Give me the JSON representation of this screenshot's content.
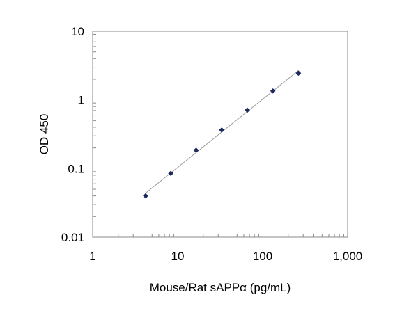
{
  "chart_data": {
    "type": "scatter",
    "title": "",
    "xlabel": "Mouse/Rat sAPPα (pg/mL)",
    "ylabel": "OD 450",
    "x_scale": "log",
    "y_scale": "log",
    "xlim": [
      1,
      1000
    ],
    "ylim": [
      0.01,
      10
    ],
    "x_ticks": [
      {
        "value": 1,
        "label": "1"
      },
      {
        "value": 10,
        "label": "10"
      },
      {
        "value": 100,
        "label": "100"
      },
      {
        "value": 1000,
        "label": "1,000"
      }
    ],
    "y_ticks": [
      {
        "value": 0.01,
        "label": "0.01"
      },
      {
        "value": 0.1,
        "label": "0.1"
      },
      {
        "value": 1,
        "label": "1"
      },
      {
        "value": 10,
        "label": "10"
      }
    ],
    "grid": false,
    "legend": "none",
    "series": [
      {
        "x": [
          4.2,
          8.3,
          16.5,
          33,
          66,
          132,
          264
        ],
        "y": [
          0.04,
          0.085,
          0.185,
          0.365,
          0.71,
          1.35,
          2.45
        ],
        "marker": "diamond",
        "color": "#1a2a5e",
        "trendline": true,
        "trendline_color": "#9a9a9a"
      }
    ]
  }
}
